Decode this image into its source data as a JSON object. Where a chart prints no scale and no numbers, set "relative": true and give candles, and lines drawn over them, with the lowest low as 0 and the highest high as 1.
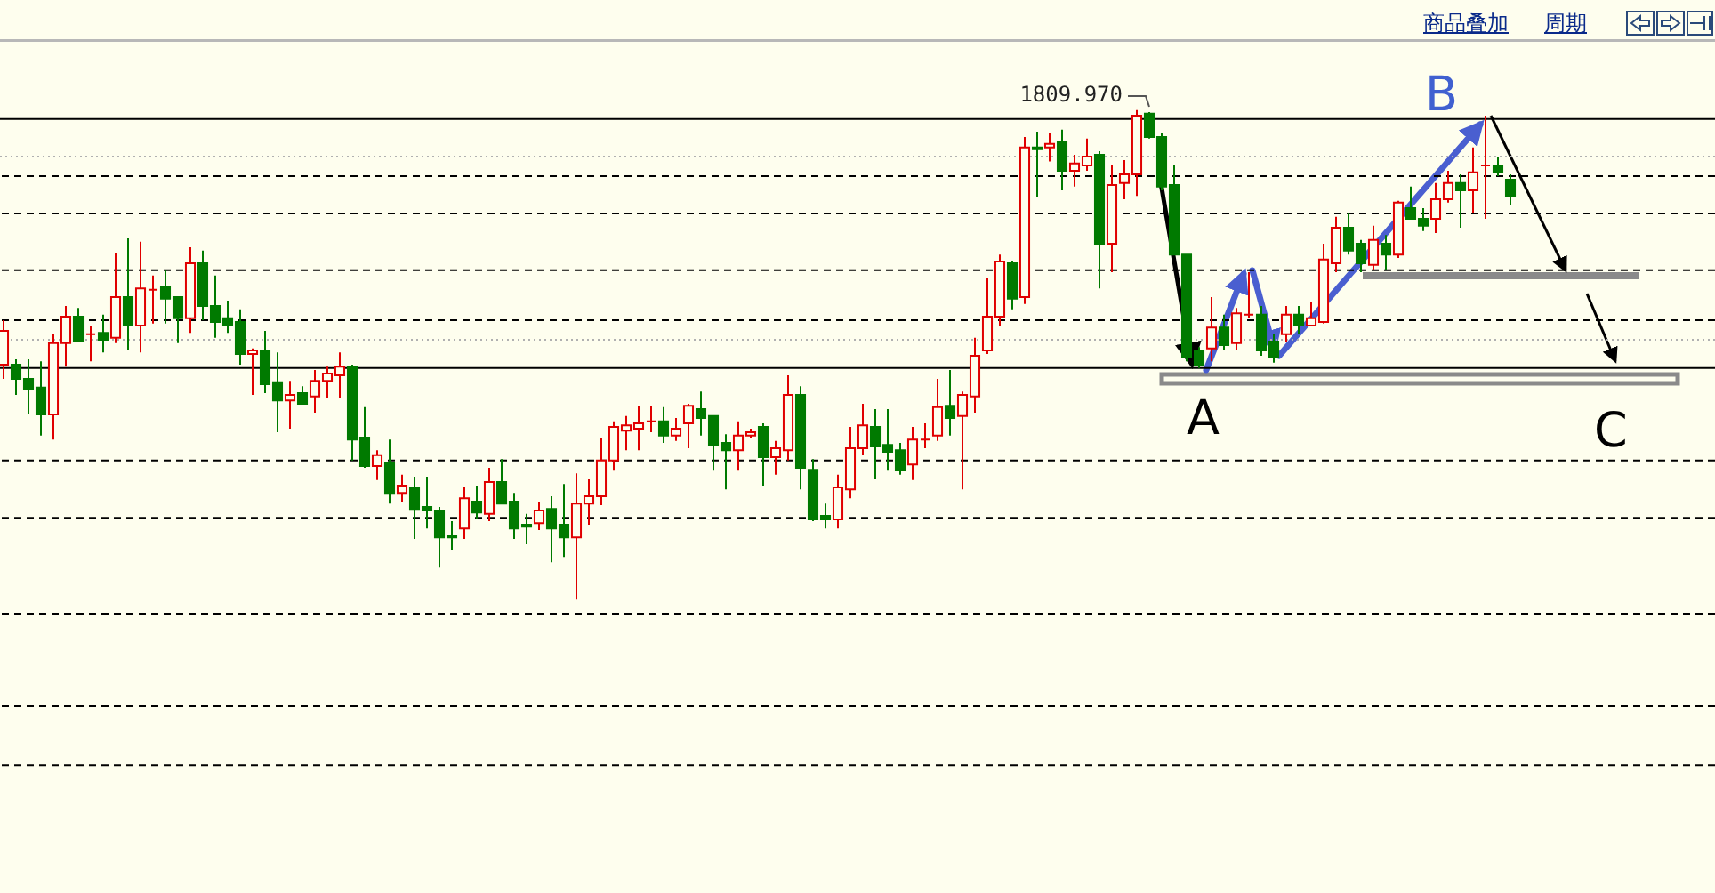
{
  "chart_data": {
    "type": "candlestick",
    "relative": true,
    "categories": [
      null,
      null,
      null,
      null,
      null,
      null,
      null,
      null,
      null,
      null,
      null,
      null,
      null,
      null,
      null,
      null,
      null,
      null,
      null,
      null,
      null,
      null,
      null,
      null,
      null,
      null,
      null,
      null,
      null,
      null,
      null,
      null,
      null,
      null,
      null,
      null,
      null,
      null,
      null,
      null,
      null,
      null,
      null,
      null,
      null,
      null,
      null,
      null,
      null,
      null,
      null,
      null,
      null,
      null,
      null,
      null,
      null,
      null,
      null,
      null,
      null,
      null,
      null,
      null,
      null,
      null,
      null,
      null,
      null,
      null,
      null,
      null,
      null,
      null,
      null,
      null,
      null,
      null,
      null,
      null,
      null,
      null,
      null,
      null,
      null,
      null,
      null,
      null,
      null,
      null,
      null,
      null,
      null,
      null,
      null,
      null,
      null,
      null,
      null,
      null,
      null,
      null,
      null,
      null,
      null,
      null,
      null,
      null,
      null,
      null,
      null,
      null,
      null,
      null,
      null,
      null,
      null,
      null,
      null,
      null,
      null,
      null
    ],
    "ohlc": [
      [
        0.48,
        0.571,
        0.451,
        0.549
      ],
      [
        0.48,
        0.491,
        0.418,
        0.451
      ],
      [
        0.451,
        0.491,
        0.378,
        0.429
      ],
      [
        0.433,
        0.487,
        0.335,
        0.378
      ],
      [
        0.378,
        0.542,
        0.327,
        0.524
      ],
      [
        0.524,
        0.6,
        0.476,
        0.578
      ],
      [
        0.578,
        0.596,
        0.527,
        0.527
      ],
      [
        0.542,
        0.56,
        0.487,
        0.542
      ],
      [
        0.545,
        0.582,
        0.505,
        0.531
      ],
      [
        0.535,
        0.709,
        0.524,
        0.618
      ],
      [
        0.618,
        0.738,
        0.509,
        0.56
      ],
      [
        0.56,
        0.731,
        0.505,
        0.636
      ],
      [
        0.633,
        0.662,
        0.564,
        0.633
      ],
      [
        0.64,
        0.673,
        0.564,
        0.615
      ],
      [
        0.618,
        0.618,
        0.524,
        0.575
      ],
      [
        0.575,
        0.72,
        0.545,
        0.687
      ],
      [
        0.687,
        0.713,
        0.571,
        0.6
      ],
      [
        0.6,
        0.662,
        0.535,
        0.567
      ],
      [
        0.575,
        0.611,
        0.545,
        0.56
      ],
      [
        0.567,
        0.593,
        0.48,
        0.502
      ],
      [
        0.502,
        0.513,
        0.418,
        0.509
      ],
      [
        0.509,
        0.549,
        0.422,
        0.44
      ],
      [
        0.444,
        0.505,
        0.342,
        0.407
      ],
      [
        0.407,
        0.447,
        0.349,
        0.418
      ],
      [
        0.422,
        0.436,
        0.4,
        0.4
      ],
      [
        0.415,
        0.469,
        0.382,
        0.447
      ],
      [
        0.447,
        0.476,
        0.411,
        0.462
      ],
      [
        0.458,
        0.505,
        0.411,
        0.476
      ],
      [
        0.476,
        0.48,
        0.284,
        0.327
      ],
      [
        0.331,
        0.393,
        0.269,
        0.273
      ],
      [
        0.273,
        0.305,
        0.244,
        0.295
      ],
      [
        0.28,
        0.327,
        0.196,
        0.218
      ],
      [
        0.218,
        0.255,
        0.2,
        0.233
      ],
      [
        0.229,
        0.251,
        0.124,
        0.185
      ],
      [
        0.189,
        0.251,
        0.145,
        0.182
      ],
      [
        0.182,
        0.189,
        0.065,
        0.127
      ],
      [
        0.131,
        0.16,
        0.102,
        0.127
      ],
      [
        0.145,
        0.229,
        0.124,
        0.207
      ],
      [
        0.2,
        0.233,
        0.164,
        0.178
      ],
      [
        0.175,
        0.269,
        0.16,
        0.24
      ],
      [
        0.24,
        0.287,
        0.196,
        0.196
      ],
      [
        0.2,
        0.218,
        0.124,
        0.145
      ],
      [
        0.153,
        0.175,
        0.113,
        0.149
      ],
      [
        0.156,
        0.2,
        0.142,
        0.182
      ],
      [
        0.185,
        0.211,
        0.076,
        0.145
      ],
      [
        0.153,
        0.236,
        0.087,
        0.127
      ],
      [
        0.127,
        0.258,
        0,
        0.196
      ],
      [
        0.196,
        0.247,
        0.153,
        0.211
      ],
      [
        0.211,
        0.331,
        0.193,
        0.284
      ],
      [
        0.284,
        0.364,
        0.265,
        0.353
      ],
      [
        0.345,
        0.375,
        0.305,
        0.356
      ],
      [
        0.349,
        0.396,
        0.305,
        0.36
      ],
      [
        0.364,
        0.396,
        0.342,
        0.364
      ],
      [
        0.364,
        0.393,
        0.32,
        0.335
      ],
      [
        0.335,
        0.371,
        0.324,
        0.349
      ],
      [
        0.36,
        0.4,
        0.309,
        0.396
      ],
      [
        0.389,
        0.425,
        0.335,
        0.371
      ],
      [
        0.375,
        0.375,
        0.265,
        0.316
      ],
      [
        0.32,
        0.338,
        0.225,
        0.305
      ],
      [
        0.305,
        0.364,
        0.265,
        0.335
      ],
      [
        0.335,
        0.349,
        0.331,
        0.342
      ],
      [
        0.353,
        0.36,
        0.233,
        0.291
      ],
      [
        0.291,
        0.324,
        0.255,
        0.309
      ],
      [
        0.305,
        0.458,
        0.284,
        0.418
      ],
      [
        0.418,
        0.436,
        0.225,
        0.269
      ],
      [
        0.265,
        0.287,
        0.16,
        0.164
      ],
      [
        0.171,
        0.196,
        0.145,
        0.164
      ],
      [
        0.164,
        0.255,
        0.145,
        0.229
      ],
      [
        0.225,
        0.353,
        0.207,
        0.309
      ],
      [
        0.309,
        0.4,
        0.295,
        0.356
      ],
      [
        0.353,
        0.389,
        0.247,
        0.313
      ],
      [
        0.316,
        0.389,
        0.265,
        0.302
      ],
      [
        0.305,
        0.32,
        0.255,
        0.265
      ],
      [
        0.276,
        0.353,
        0.244,
        0.327
      ],
      [
        0.327,
        0.36,
        0.309,
        0.327
      ],
      [
        0.335,
        0.451,
        0.324,
        0.393
      ],
      [
        0.396,
        0.469,
        0.335,
        0.371
      ],
      [
        0.375,
        0.425,
        0.225,
        0.418
      ],
      [
        0.415,
        0.535,
        0.382,
        0.498
      ],
      [
        0.509,
        0.658,
        0.502,
        0.578
      ],
      [
        0.578,
        0.705,
        0.56,
        0.691
      ],
      [
        0.687,
        0.691,
        0.593,
        0.615
      ],
      [
        0.618,
        0.945,
        0.604,
        0.924
      ],
      [
        0.924,
        0.956,
        0.822,
        0.92
      ],
      [
        0.924,
        0.953,
        0.895,
        0.931
      ],
      [
        0.935,
        0.96,
        0.836,
        0.876
      ],
      [
        0.876,
        0.909,
        0.844,
        0.891
      ],
      [
        0.887,
        0.942,
        0.876,
        0.905
      ],
      [
        0.909,
        0.916,
        0.636,
        0.727
      ],
      [
        0.727,
        0.887,
        0.669,
        0.847
      ],
      [
        0.851,
        0.898,
        0.818,
        0.869
      ],
      [
        0.869,
        1,
        0.825,
        0.989
      ],
      [
        0.993,
        0.996,
        0.942,
        0.945
      ],
      [
        0.945,
        0.953,
        0.836,
        0.844
      ],
      [
        0.847,
        0.887,
        0.705,
        0.705
      ],
      [
        0.705,
        0.705,
        0.487,
        0.495
      ],
      [
        0.509,
        0.516,
        0.473,
        0.48
      ],
      [
        0.513,
        0.618,
        0.487,
        0.556
      ],
      [
        0.556,
        0.582,
        0.509,
        0.52
      ],
      [
        0.524,
        0.596,
        0.509,
        0.585
      ],
      [
        0.582,
        0.669,
        0.575,
        0.582
      ],
      [
        0.582,
        0.6,
        0.498,
        0.509
      ],
      [
        0.527,
        0.542,
        0.484,
        0.495
      ],
      [
        0.542,
        0.6,
        0.527,
        0.582
      ],
      [
        0.582,
        0.6,
        0.542,
        0.56
      ],
      [
        0.56,
        0.607,
        0.56,
        0.575
      ],
      [
        0.567,
        0.727,
        0.564,
        0.695
      ],
      [
        0.687,
        0.782,
        0.669,
        0.76
      ],
      [
        0.76,
        0.789,
        0.705,
        0.713
      ],
      [
        0.727,
        0.735,
        0.669,
        0.687
      ],
      [
        0.684,
        0.764,
        0.673,
        0.735
      ],
      [
        0.727,
        0.745,
        0.673,
        0.705
      ],
      [
        0.705,
        0.815,
        0.698,
        0.811
      ],
      [
        0.8,
        0.844,
        0.778,
        0.778
      ],
      [
        0.778,
        0.8,
        0.753,
        0.764
      ],
      [
        0.778,
        0.851,
        0.749,
        0.818
      ],
      [
        0.818,
        0.876,
        0.811,
        0.851
      ],
      [
        0.851,
        0.869,
        0.76,
        0.836
      ],
      [
        0.836,
        0.924,
        0.789,
        0.873
      ],
      [
        0.887,
        0.989,
        0.778,
        0.887
      ],
      [
        0.887,
        0.905,
        0.865,
        0.873
      ],
      [
        0.858,
        0.869,
        0.807,
        0.825
      ]
    ],
    "ref_lines": [
      {
        "axis": "y",
        "value": 0.982,
        "color": "#000000",
        "line_style": "solid"
      },
      {
        "axis": "y",
        "value": 0.905,
        "color": "#b0b0b0",
        "line_style": "dotted"
      },
      {
        "axis": "y",
        "value": 0.865,
        "color": "#000000",
        "line_style": "dashed"
      },
      {
        "axis": "y",
        "value": 0.789,
        "color": "#000000",
        "line_style": "dashed"
      },
      {
        "axis": "y",
        "value": 0.673,
        "color": "#000000",
        "line_style": "dashed"
      },
      {
        "axis": "y",
        "value": 0.571,
        "color": "#000000",
        "line_style": "dashed"
      },
      {
        "axis": "y",
        "value": 0.531,
        "color": "#b0b0b0",
        "line_style": "dotted"
      },
      {
        "axis": "y",
        "value": 0.473,
        "color": "#000000",
        "line_style": "solid"
      },
      {
        "axis": "y",
        "value": 0.284,
        "color": "#000000",
        "line_style": "dashed"
      },
      {
        "axis": "y",
        "value": 0.167,
        "color": "#000000",
        "line_style": "dashed"
      },
      {
        "axis": "y",
        "value": -0.029,
        "color": "#000000",
        "line_style": "dashed"
      },
      {
        "axis": "y",
        "value": -0.218,
        "color": "#000000",
        "line_style": "dashed"
      },
      {
        "axis": "y",
        "value": -0.338,
        "color": "#000000",
        "line_style": "dashed"
      }
    ],
    "annotations": [
      "商品叠加",
      "周期",
      {
        "text": "1809.970",
        "y": 1
      },
      "A",
      "B",
      "C"
    ]
  }
}
